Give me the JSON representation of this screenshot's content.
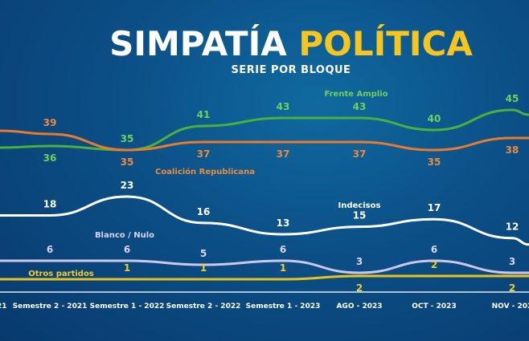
{
  "title_part1": "SIMPATÍA",
  "title_part2": "POLÍTICA",
  "subtitle": "SERIE POR BLOQUE",
  "chart_data": {
    "type": "line",
    "title": "SIMPATÍA POLÍTICA",
    "subtitle": "SERIE POR BLOQUE",
    "categories": [
      "21",
      "Semestre 2 - 2021",
      "Semestre 1 - 2022",
      "Semestre 2 - 2022",
      "Semestre 1 - 2023",
      "AGO - 2023",
      "OCT - 2023",
      "NOV - 202"
    ],
    "series": [
      {
        "name": "Frente Amplio",
        "color": "#4cb13c",
        "label_color": "#6fd05a",
        "values": [
          null,
          36,
          35,
          41,
          43,
          43,
          40,
          45
        ]
      },
      {
        "name": "Coalición Republicana",
        "color": "#ea7b2c",
        "label_color": "#ef8a3a",
        "values": [
          null,
          39,
          35,
          37,
          37,
          37,
          35,
          38
        ]
      },
      {
        "name": "Indecisos",
        "color": "#ffffff",
        "label_color": "#ffffff",
        "values": [
          null,
          18,
          23,
          16,
          13,
          15,
          17,
          12
        ]
      },
      {
        "name": "Blanco / Nulo",
        "color": "#cfc7ea",
        "label_color": "#d8d2ef",
        "values": [
          null,
          6,
          6,
          5,
          6,
          3,
          6,
          3
        ]
      },
      {
        "name": "Otros partidos",
        "color": "#e9c21e",
        "label_color": "#f2cd2a",
        "values": [
          null,
          null,
          1,
          1,
          1,
          2,
          2,
          2
        ]
      }
    ],
    "grid": false,
    "legend": "inline labels"
  }
}
